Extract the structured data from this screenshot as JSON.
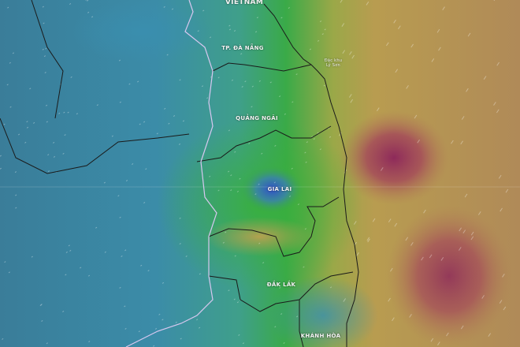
{
  "map": {
    "layer": "wind",
    "labels": {
      "country": "VIETNAM",
      "da_nang": "TP. ĐÀ NẴNG",
      "ly_son_1": "Đặc khu",
      "ly_son_2": "Lý Sơn",
      "quang_ngai": "QUẢNG NGÃI",
      "gia_lai": "GIA LAI",
      "dak_lak": "ĐẮK LẮK",
      "khanh_hoa": "KHÁNH HÒA"
    },
    "colors": {
      "calm": "#3a86a8",
      "moderate": "#3aa64a",
      "strong": "#b59a4a",
      "very_strong": "#9a3a5a",
      "province_border": "#1a1a1a",
      "country_border": "#d8c8f0"
    }
  }
}
